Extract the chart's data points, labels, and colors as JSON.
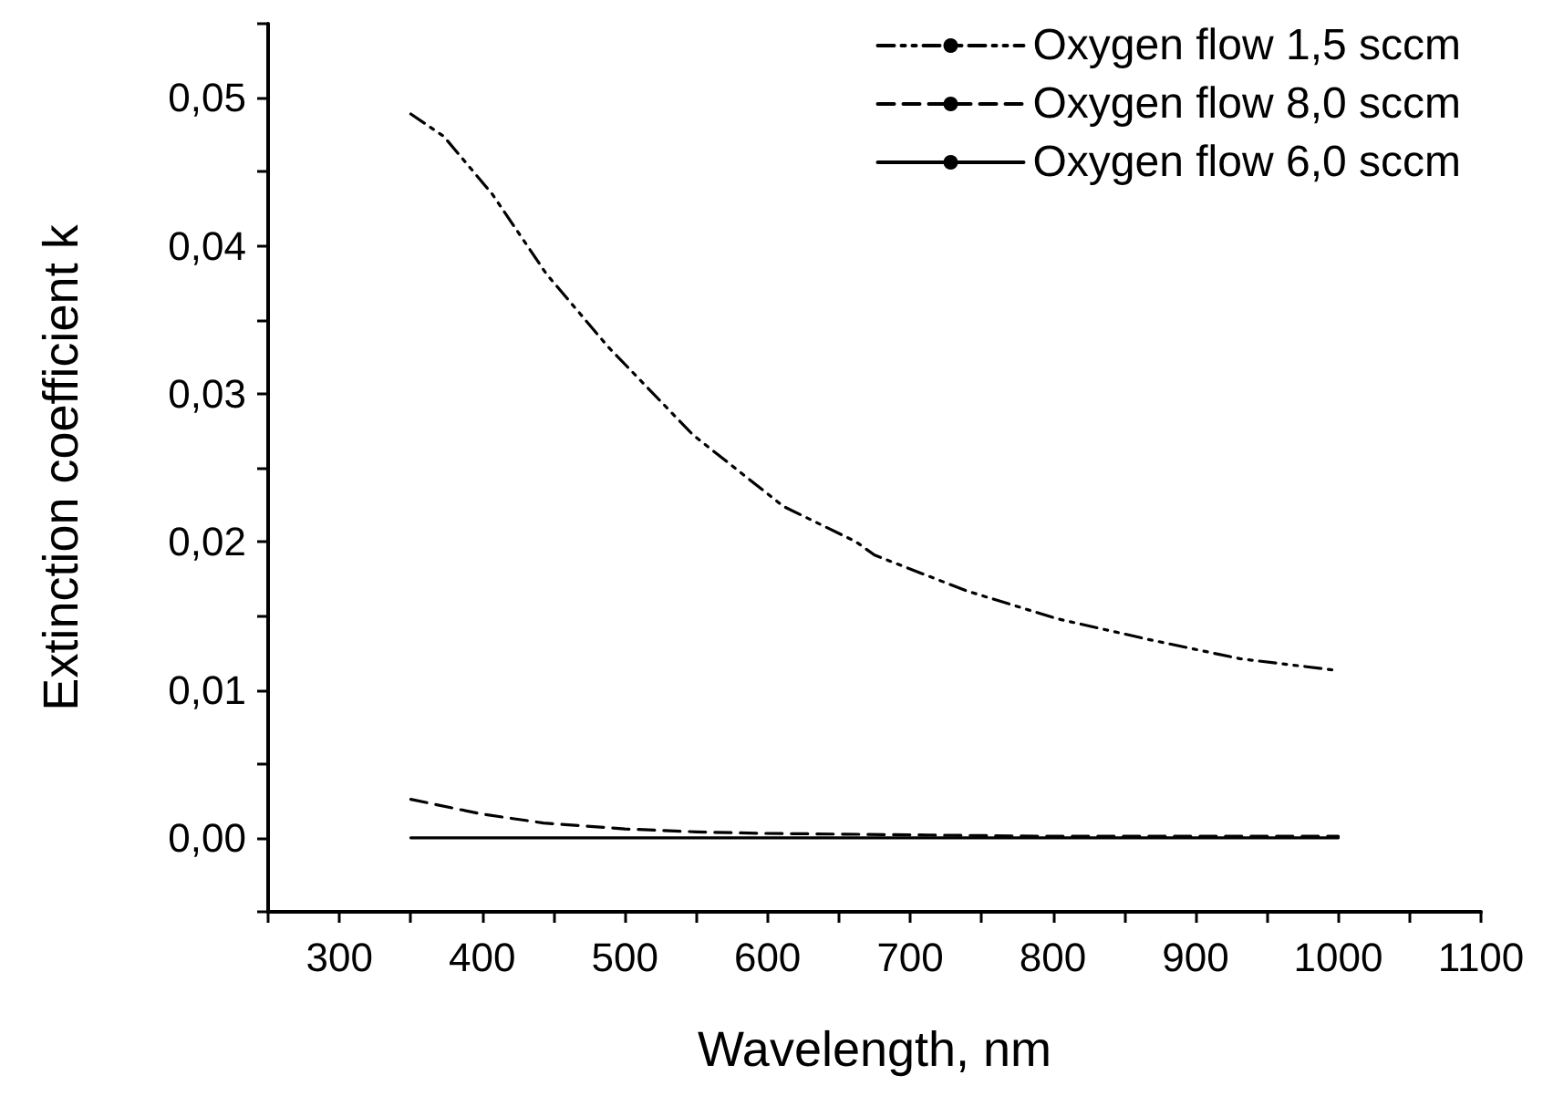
{
  "chart_data": {
    "type": "line",
    "xlabel": "Wavelength, nm",
    "ylabel": "Extinction coefficient k",
    "xlim": [
      250,
      1100
    ],
    "xticks": [
      {
        "value": 250,
        "label": null
      },
      300,
      {
        "value": 350,
        "label": null
      },
      400,
      {
        "value": 450,
        "label": null
      },
      500,
      {
        "value": 550,
        "label": null
      },
      600,
      {
        "value": 650,
        "label": null
      },
      700,
      {
        "value": 750,
        "label": null
      },
      800,
      {
        "value": 850,
        "label": null
      },
      900,
      {
        "value": 950,
        "label": null
      },
      1000,
      {
        "value": 1050,
        "label": null
      },
      1100
    ],
    "ylim": [
      -0.005,
      0.055
    ],
    "yticks": [
      {
        "value": -0.005,
        "label": null
      },
      {
        "value": 0,
        "label": "0,00"
      },
      {
        "value": 0.005,
        "label": null
      },
      {
        "value": 0.01,
        "label": "0,01"
      },
      {
        "value": 0.015,
        "label": null
      },
      {
        "value": 0.02,
        "label": "0,02"
      },
      {
        "value": 0.025,
        "label": null
      },
      {
        "value": 0.03,
        "label": "0,03"
      },
      {
        "value": 0.035,
        "label": null
      },
      {
        "value": 0.04,
        "label": "0,04"
      },
      {
        "value": 0.045,
        "label": null
      },
      {
        "value": 0.05,
        "label": "0,05"
      },
      {
        "value": 0.055,
        "label": null
      }
    ],
    "grid": false,
    "legend": "top right",
    "marker": "none",
    "series": [
      {
        "name": "Oxygen flow 1,5 sccm",
        "color": "#000000",
        "line_style": "dotted",
        "x": [
          350,
          373,
          407,
          445,
          488,
          530,
          548,
          573,
          611,
          662,
          675,
          739,
          803,
          867,
          931,
          1000
        ],
        "values": [
          0.0489,
          0.0474,
          0.0435,
          0.0381,
          0.0332,
          0.029,
          0.0272,
          0.0253,
          0.0224,
          0.02,
          0.0191,
          0.0167,
          0.0148,
          0.0134,
          0.0121,
          0.0113
        ]
      },
      {
        "name": "Oxygen flow 8,0 sccm",
        "color": "#000000",
        "line_style": "dashed",
        "x": [
          350,
          400,
          443,
          500,
          550,
          596,
          700,
          800,
          900,
          1000
        ],
        "values": [
          0.0026,
          0.0016,
          0.001,
          0.0006,
          0.0004,
          0.0003,
          0.0002,
          0.0001,
          0.0001,
          0.0001
        ]
      },
      {
        "name": "Oxygen flow 6,0 sccm",
        "color": "#000000",
        "line_style": "solid",
        "x": [
          350,
          1000
        ],
        "values": [
          0,
          0
        ]
      }
    ]
  }
}
